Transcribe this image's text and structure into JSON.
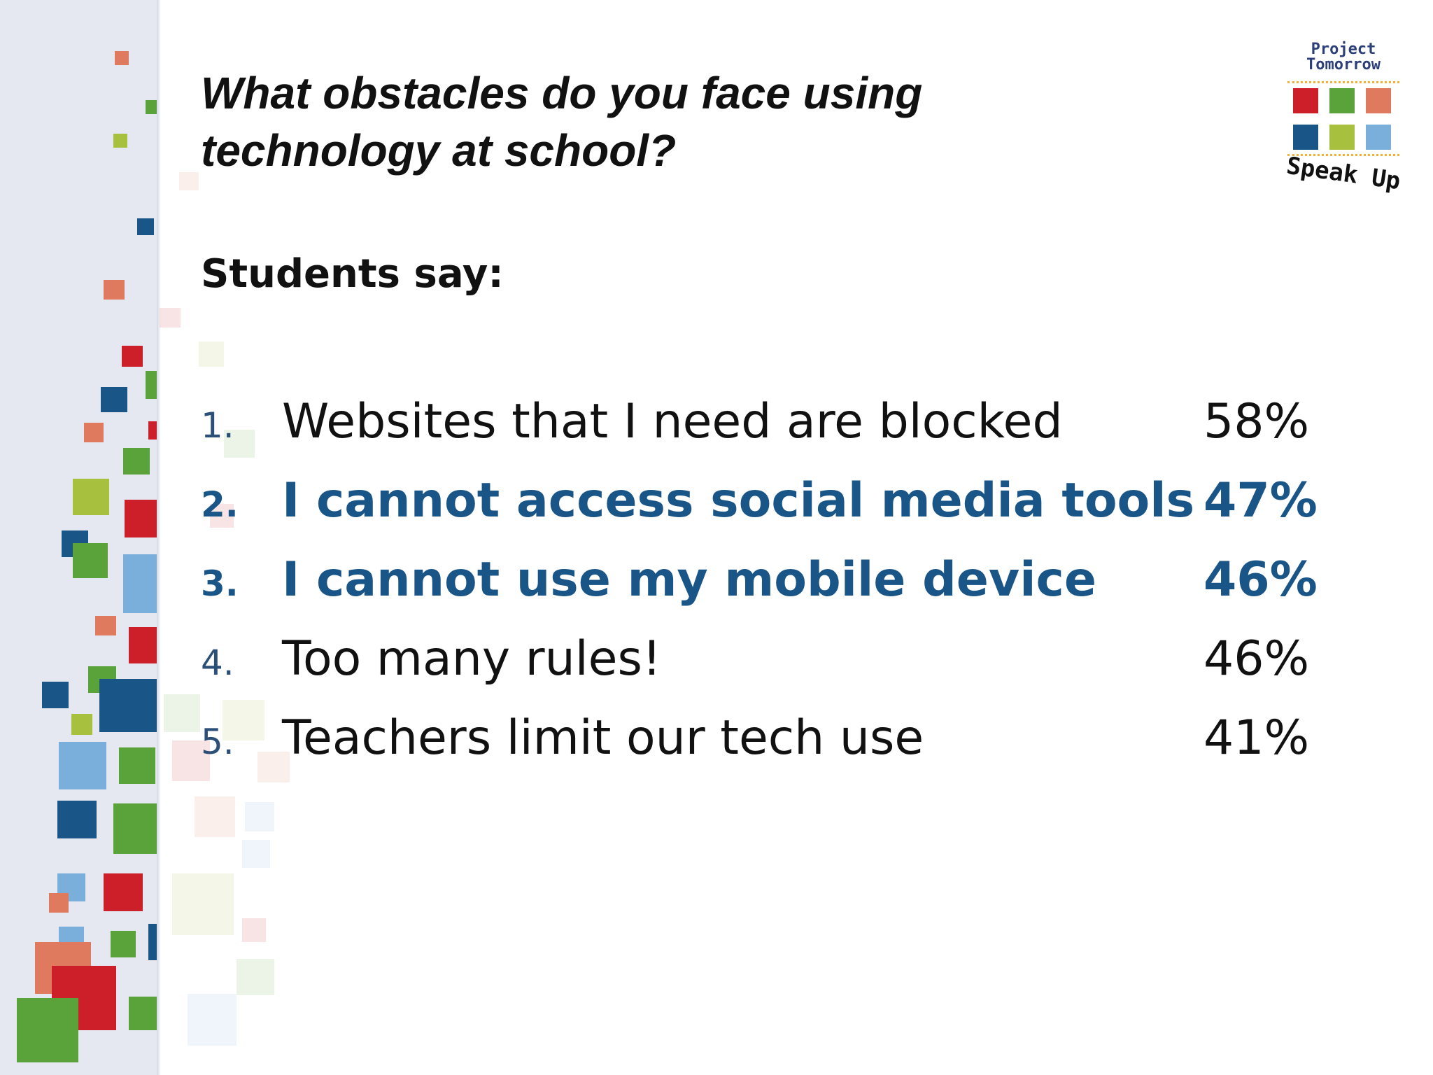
{
  "slide": {
    "title": "What obstacles do you face using technology at school?",
    "subtitle": "Students say:",
    "items": [
      {
        "number": "1.",
        "label": "Websites that I need are blocked",
        "percent": "58%",
        "highlighted": false
      },
      {
        "number": "2.",
        "label": "I cannot access social media tools",
        "percent": "47%",
        "highlighted": true
      },
      {
        "number": "3.",
        "label": "I cannot use my mobile device",
        "percent": "46%",
        "highlighted": true
      },
      {
        "number": "4.",
        "label": "Too many rules!",
        "percent": "46%",
        "highlighted": false
      },
      {
        "number": "5.",
        "label": "Teachers limit our tech use",
        "percent": "41%",
        "highlighted": false
      }
    ],
    "highlight_color": "#1a5587",
    "text_color": "#111111"
  },
  "logo": {
    "top_text": "Project Tomorrow",
    "bottom_text": "Speak Up",
    "square_colors": [
      "#cc1f2a",
      "#5aa23a",
      "#e07a5f",
      "#1a5587",
      "#a7c03e",
      "#7aaedb"
    ]
  },
  "decoration": {
    "colors": [
      "#cc1f2a",
      "#5aa23a",
      "#e07a5f",
      "#1a5587",
      "#a7c03e",
      "#7aaedb"
    ]
  }
}
